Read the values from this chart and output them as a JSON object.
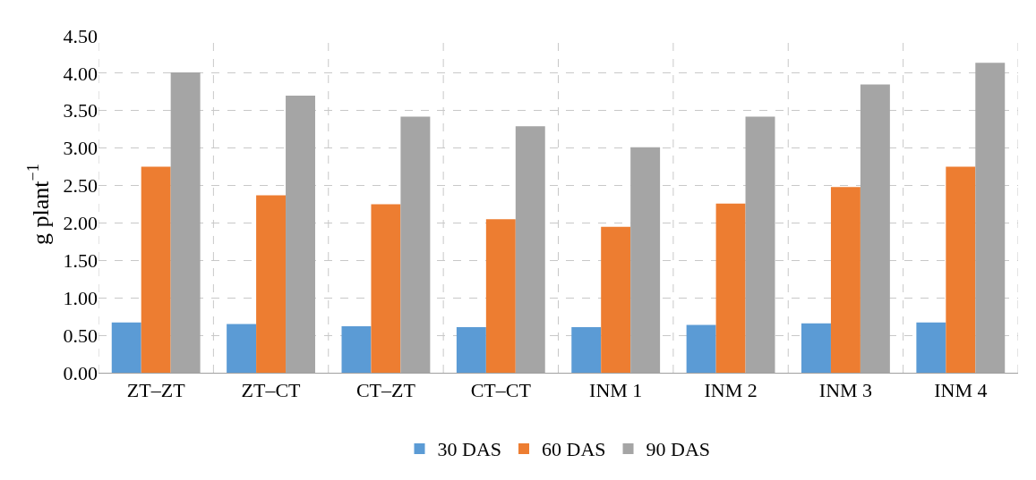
{
  "chart_data": {
    "type": "bar",
    "ylabel": "g plant$^{−1}$",
    "categories": [
      "ZT–ZT",
      "ZT–CT",
      "CT–ZT",
      "CT–CT",
      "INM 1",
      "INM 2",
      "INM 3",
      "INM 4"
    ],
    "series": [
      {
        "name": "30 DAS",
        "color": "#5b9bd5",
        "values": [
          0.67,
          0.65,
          0.62,
          0.61,
          0.61,
          0.64,
          0.66,
          0.67
        ]
      },
      {
        "name": "60 DAS",
        "color": "#ed7d31",
        "values": [
          2.75,
          2.37,
          2.25,
          2.05,
          1.95,
          2.26,
          2.48,
          2.75
        ]
      },
      {
        "name": "90 DAS",
        "color": "#a5a5a5",
        "values": [
          4.01,
          3.7,
          3.42,
          3.29,
          3.01,
          3.42,
          3.85,
          4.14
        ]
      }
    ],
    "ylim": [
      0,
      4.5
    ],
    "yticks": [
      {
        "value": 0,
        "label": "0.00"
      },
      {
        "value": 0.5,
        "label": "0.50"
      },
      {
        "value": 1,
        "label": "1.00"
      },
      {
        "value": 1.5,
        "label": "1.50"
      },
      {
        "value": 2,
        "label": "2.00"
      },
      {
        "value": 2.5,
        "label": "2.50"
      },
      {
        "value": 3,
        "label": "3.00"
      },
      {
        "value": 3.5,
        "label": "3.50"
      },
      {
        "value": 4,
        "label": "4.00"
      },
      {
        "value": 4.5,
        "label": "4.50"
      }
    ],
    "grid": true,
    "legend": "bottom"
  }
}
